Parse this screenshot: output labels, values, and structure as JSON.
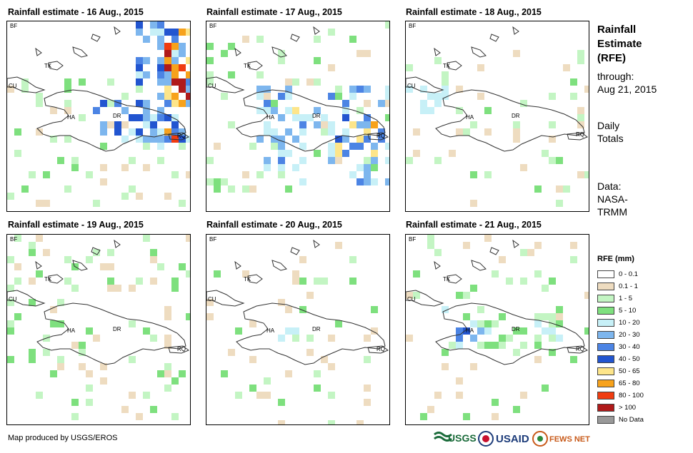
{
  "panels": [
    {
      "title": "Rainfall estimate - 16 Aug., 2015"
    },
    {
      "title": "Rainfall estimate - 17 Aug., 2015"
    },
    {
      "title": "Rainfall estimate - 18 Aug., 2015"
    },
    {
      "title": "Rainfall estimate - 19 Aug., 2015"
    },
    {
      "title": "Rainfall estimate - 20 Aug., 2015"
    },
    {
      "title": "Rainfall estimate - 21 Aug., 2015"
    }
  ],
  "map_labels": {
    "bf": "BF",
    "tk": "TK",
    "cu": "CU",
    "ha": "HA",
    "dr": "DR",
    "rq": "RQ"
  },
  "side": {
    "title_line1": "Rainfall",
    "title_line2": "Estimate",
    "title_line3": "(RFE)",
    "through": "through:",
    "date": "Aug 21, 2015",
    "daily1": "Daily",
    "daily2": "Totals",
    "data1": "Data:",
    "data2": "NASA-",
    "data3": "TRMM"
  },
  "legend": {
    "title": "RFE (mm)",
    "items": [
      {
        "label": "0 - 0.1",
        "color": "#ffffff"
      },
      {
        "label": "0.1 - 1",
        "color": "#eedcc0"
      },
      {
        "label": "1 - 5",
        "color": "#c3f5c3"
      },
      {
        "label": "5 - 10",
        "color": "#7ee07e"
      },
      {
        "label": "10 - 20",
        "color": "#c7f0f7"
      },
      {
        "label": "20 - 30",
        "color": "#7db6ee"
      },
      {
        "label": "30 - 40",
        "color": "#4c84e4"
      },
      {
        "label": "40 - 50",
        "color": "#2255d0"
      },
      {
        "label": "50 - 65",
        "color": "#fde58a"
      },
      {
        "label": "65 - 80",
        "color": "#f7a21c"
      },
      {
        "label": "80 - 100",
        "color": "#f03c10"
      },
      {
        "label": "> 100",
        "color": "#b01a1a"
      },
      {
        "label": "No Data",
        "color": "#999999"
      }
    ]
  },
  "footer": {
    "credit": "Map produced by USGS/EROS"
  },
  "logos": {
    "usgs": "USGS",
    "usaid": "USAID",
    "fewsnet": "FEWS NET"
  }
}
